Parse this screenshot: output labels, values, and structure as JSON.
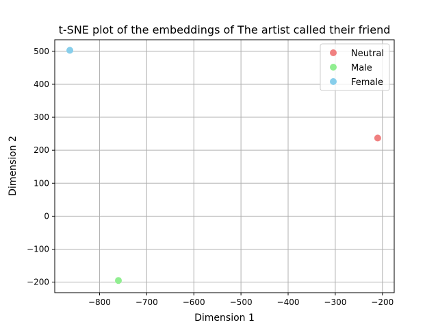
{
  "chart_data": {
    "type": "scatter",
    "title": "t-SNE plot of the embeddings of The artist called their friend",
    "xlabel": "Dimension 1",
    "ylabel": "Dimension 2",
    "xlim": [
      -895,
      -175
    ],
    "ylim": [
      -232,
      535
    ],
    "xticks": [
      -800,
      -700,
      -600,
      -500,
      -400,
      -300,
      -200
    ],
    "yticks": [
      -200,
      -100,
      0,
      100,
      200,
      300,
      400,
      500
    ],
    "xtick_labels": [
      "−800",
      "−700",
      "−600",
      "−500",
      "−400",
      "−300",
      "−200"
    ],
    "ytick_labels": [
      "−200",
      "−100",
      "0",
      "100",
      "200",
      "300",
      "400",
      "500"
    ],
    "grid": true,
    "legend_position": "top-right",
    "series": [
      {
        "name": "Neutral",
        "color": "#f08080",
        "points": [
          {
            "x": -210,
            "y": 237
          }
        ]
      },
      {
        "name": "Male",
        "color": "#90ee90",
        "points": [
          {
            "x": -760,
            "y": -195
          }
        ]
      },
      {
        "name": "Female",
        "color": "#87ceeb",
        "points": [
          {
            "x": -863,
            "y": 503
          }
        ]
      }
    ]
  }
}
